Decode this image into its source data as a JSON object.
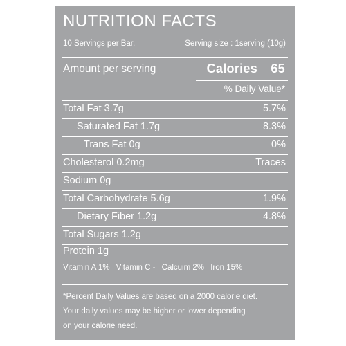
{
  "title": "NUTRITION FACTS",
  "servings_per": "10 Servings per Bar.",
  "serving_size": "Serving size : 1serving (10g)",
  "amount_label": "Amount per serving",
  "calories_label": "Calories",
  "calories_value": "65",
  "daily_value_header": "% Daily Value*",
  "nutrients": [
    {
      "label": "Total Fat 3.7g",
      "value": "5.7%"
    },
    {
      "label": "Saturated Fat 1.7g",
      "value": "8.3%"
    },
    {
      "label": "Trans  Fat 0g",
      "value": "0%"
    },
    {
      "label": "Cholesterol 0.2mg",
      "value": "Traces"
    },
    {
      "label": "Sodium 0g",
      "value": ""
    },
    {
      "label": "Total Carbohydrate 5.6g",
      "value": "1.9%"
    },
    {
      "label": "Dietary Fiber 1.2g",
      "value": "4.8%"
    },
    {
      "label": "Total Sugars 1.2g",
      "value": ""
    },
    {
      "label": "Protein 1g",
      "value": ""
    }
  ],
  "vitamins": [
    "Vitamin A 1%",
    "Vitamin C -",
    "Calcuim 2%",
    "Iron 15%"
  ],
  "footnote": [
    "*Percent Daily Values are based on a 2000 calorie diet.",
    "Your daily values may be higher or lower depending",
    "on your calorie need."
  ],
  "colors": {
    "panel": "#a3a4a6",
    "text": "#ffffff"
  }
}
